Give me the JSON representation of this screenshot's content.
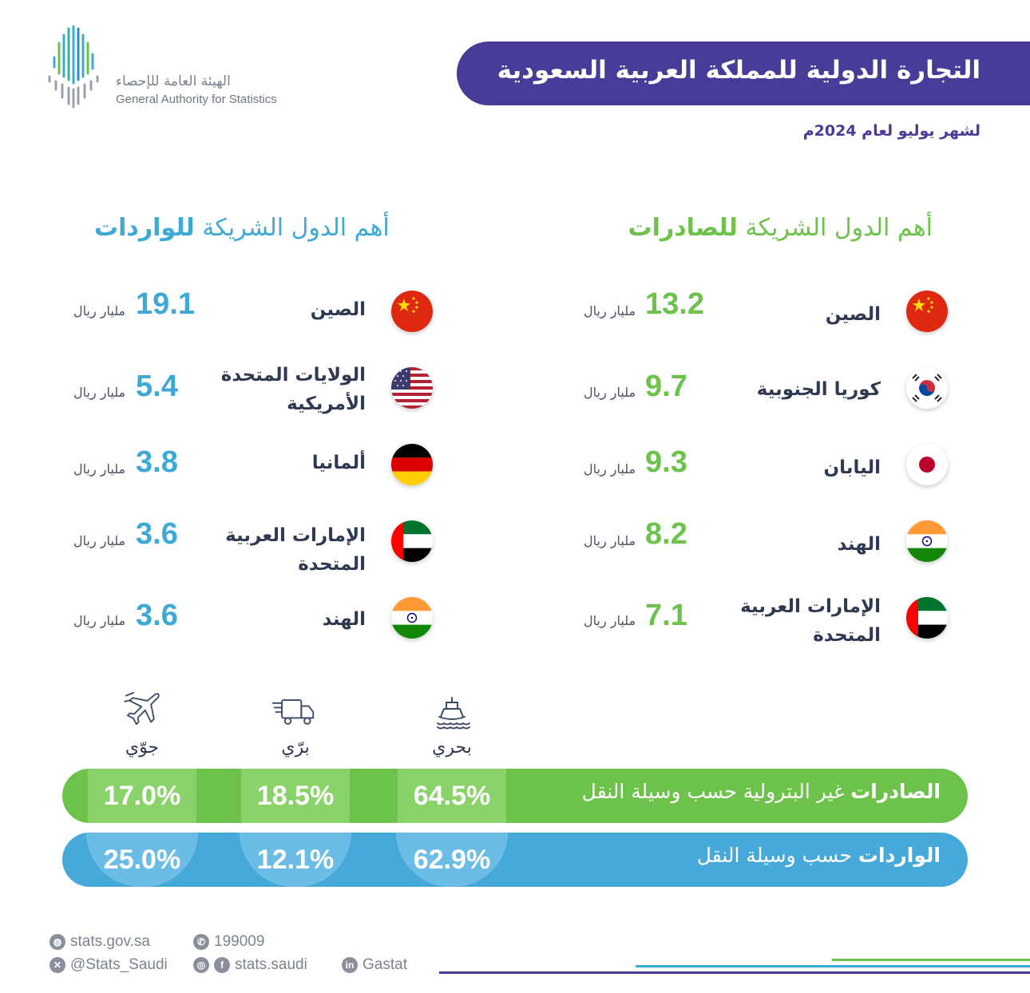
{
  "logo": {
    "arabic_name": "الهيئة العامة للإحصاء",
    "english_name": "General Authority for Statistics"
  },
  "header": {
    "title": "التجارة الدولية للمملكة العربية السعودية",
    "subtitle": "لشهر يوليو لعام 2024م"
  },
  "exports": {
    "heading_prefix": "أهم الدول الشريكة",
    "heading_emphasis": "للصادرات",
    "unit": "مليار ريال",
    "countries": [
      {
        "name": "الصين",
        "value": "13.2",
        "flag": "china-flag"
      },
      {
        "name": "كوريا الجنوبية",
        "value": "9.7",
        "flag": "south-korea-flag"
      },
      {
        "name": "اليابان",
        "value": "9.3",
        "flag": "japan-flag"
      },
      {
        "name": "الهند",
        "value": "8.2",
        "flag": "india-flag"
      },
      {
        "name": "الإمارات العربية المتحدة",
        "value": "7.1",
        "flag": "uae-flag"
      }
    ]
  },
  "imports": {
    "heading_prefix": "أهم الدول الشريكة",
    "heading_emphasis": "للواردات",
    "unit": "مليار ريال",
    "countries": [
      {
        "name": "الصين",
        "value": "19.1",
        "flag": "china-flag"
      },
      {
        "name": "الولايات المتحدة الأمريكية",
        "value": "5.4",
        "flag": "usa-flag"
      },
      {
        "name": "ألمانيا",
        "value": "3.8",
        "flag": "germany-flag"
      },
      {
        "name": "الإمارات العربية المتحدة",
        "value": "3.6",
        "flag": "uae-flag"
      },
      {
        "name": "الهند",
        "value": "3.6",
        "flag": "india-flag"
      }
    ]
  },
  "transport": {
    "modes": [
      {
        "label": "بحري",
        "icon": "ship-icon"
      },
      {
        "label": "برّي",
        "icon": "truck-icon"
      },
      {
        "label": "جوّي",
        "icon": "airplane-icon"
      }
    ],
    "exports_bar": {
      "label_bold": "الصادرات",
      "label_rest": "غير البترولية حسب وسيلة النقل",
      "sea": "64.5%",
      "land": "18.5%",
      "air": "17.0%"
    },
    "imports_bar": {
      "label_bold": "الواردات",
      "label_rest": "حسب وسيلة النقل",
      "sea": "62.9%",
      "land": "12.1%",
      "air": "25.0%"
    }
  },
  "footer": {
    "website": "stats.gov.sa",
    "x_handle": "@Stats_Saudi",
    "phone": "199009",
    "social_handle": "stats.saudi",
    "linkedin": "Gastat"
  },
  "colors": {
    "primary_purple": "#473d98",
    "export_green": "#6cc24a",
    "import_blue": "#3fa9d5"
  }
}
